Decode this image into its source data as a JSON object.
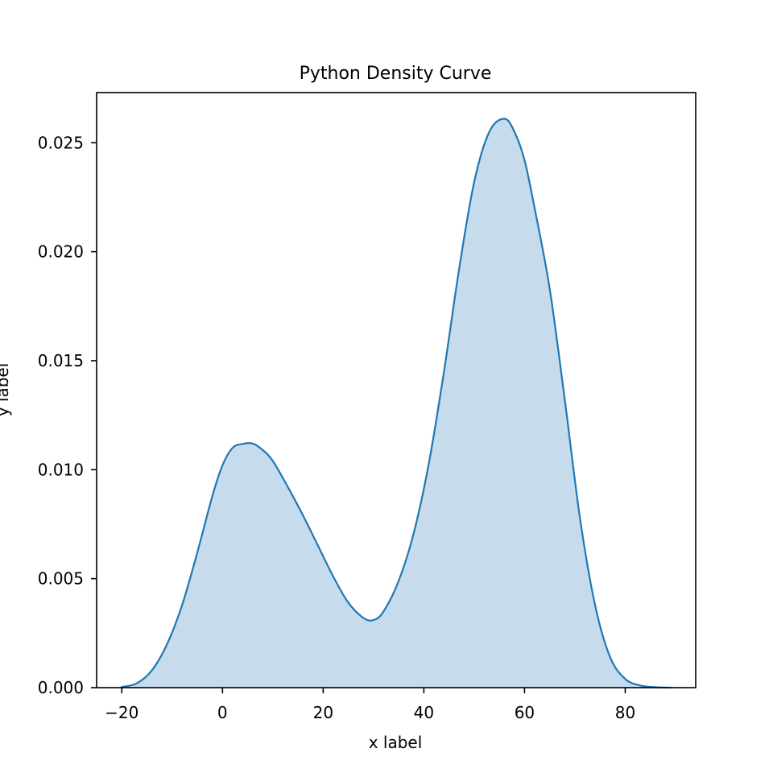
{
  "chart_data": {
    "type": "area",
    "title": "Python Density Curve",
    "xlabel": "x label",
    "ylabel": "y label",
    "xlim": [
      -25,
      94
    ],
    "ylim": [
      0,
      0.0273
    ],
    "xticks": [
      -20,
      0,
      20,
      40,
      60,
      80
    ],
    "xtick_labels": [
      "−20",
      "0",
      "20",
      "40",
      "60",
      "80"
    ],
    "yticks": [
      0,
      0.005,
      0.01,
      0.015,
      0.02,
      0.025
    ],
    "ytick_labels": [
      "0.000",
      "0.005",
      "0.010",
      "0.015",
      "0.020",
      "0.025"
    ],
    "grid": false,
    "legend": "none",
    "colors": {
      "line": "#1f77b4",
      "fill": "#c6dcec",
      "axes": "#000000",
      "background": "#ffffff"
    },
    "series": [
      {
        "x": [
          -20,
          -17,
          -14,
          -11,
          -8,
          -5,
          -2,
          0,
          2,
          4,
          6,
          8,
          10,
          13,
          16,
          19,
          22,
          25,
          28,
          30,
          32,
          35,
          38,
          41,
          44,
          47,
          50,
          53,
          56,
          58,
          60,
          62,
          65,
          68,
          71,
          74,
          77,
          80,
          83,
          86,
          89
        ],
        "y": [
          3e-05,
          0.0002,
          0.0008,
          0.002,
          0.0038,
          0.0062,
          0.0088,
          0.0102,
          0.011,
          0.01118,
          0.0112,
          0.0109,
          0.0104,
          0.0092,
          0.0079,
          0.0065,
          0.0051,
          0.0039,
          0.0032,
          0.0031,
          0.0035,
          0.0049,
          0.0071,
          0.0103,
          0.0145,
          0.0192,
          0.0232,
          0.0255,
          0.0261,
          0.0255,
          0.0242,
          0.022,
          0.0183,
          0.0132,
          0.0078,
          0.0038,
          0.0014,
          0.0004,
          0.0001,
          2e-05,
          0.0
        ]
      }
    ]
  }
}
